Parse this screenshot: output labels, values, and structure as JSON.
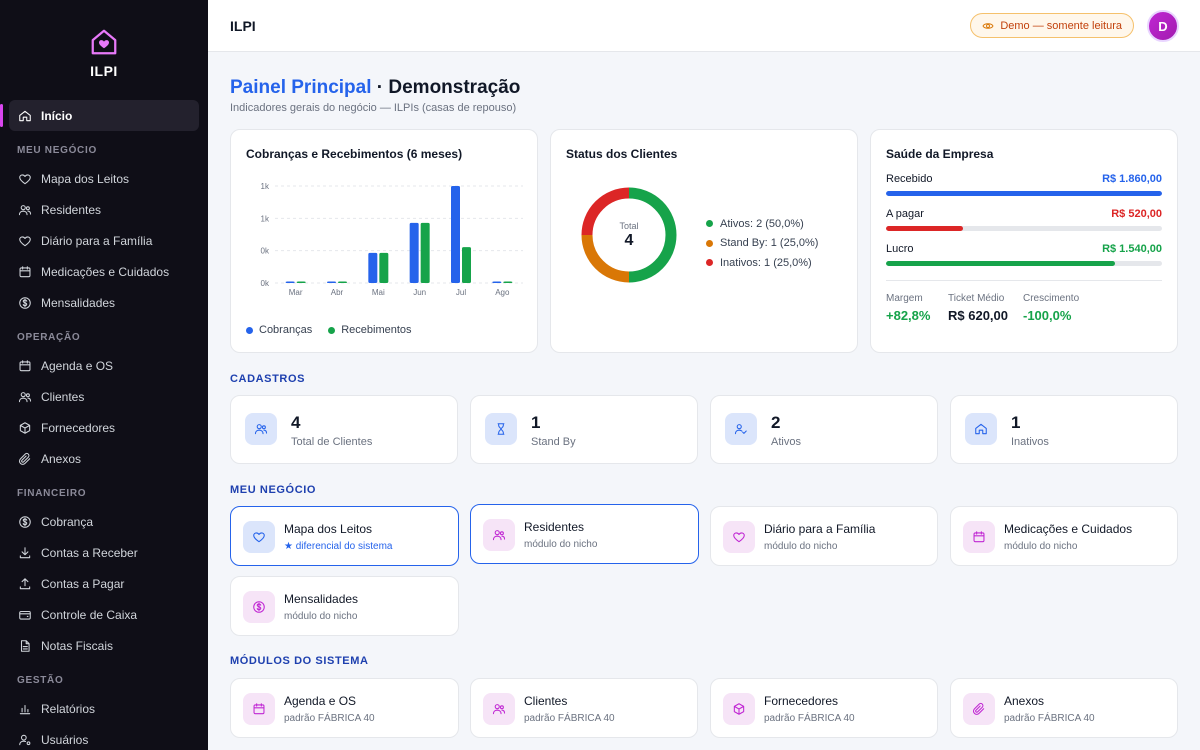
{
  "brand": {
    "name": "ILPI"
  },
  "sidebar": {
    "inicio": "Início",
    "sections": [
      {
        "title": "MEU NEGÓCIO",
        "items": [
          {
            "label": "Mapa dos Leitos",
            "icon": "heart-icon"
          },
          {
            "label": "Residentes",
            "icon": "users-icon"
          },
          {
            "label": "Diário para a Família",
            "icon": "heart-icon"
          },
          {
            "label": "Medicações e Cuidados",
            "icon": "calendar-icon"
          },
          {
            "label": "Mensalidades",
            "icon": "dollar-icon"
          }
        ]
      },
      {
        "title": "OPERAÇÃO",
        "items": [
          {
            "label": "Agenda e OS",
            "icon": "calendar-icon"
          },
          {
            "label": "Clientes",
            "icon": "users-icon"
          },
          {
            "label": "Fornecedores",
            "icon": "box-icon"
          },
          {
            "label": "Anexos",
            "icon": "paperclip-icon"
          }
        ]
      },
      {
        "title": "FINANCEIRO",
        "items": [
          {
            "label": "Cobrança",
            "icon": "dollar-icon"
          },
          {
            "label": "Contas a Receber",
            "icon": "download-icon"
          },
          {
            "label": "Contas a Pagar",
            "icon": "upload-icon"
          },
          {
            "label": "Controle de Caixa",
            "icon": "wallet-icon"
          },
          {
            "label": "Notas Fiscais",
            "icon": "file-icon"
          }
        ]
      },
      {
        "title": "GESTÃO",
        "items": [
          {
            "label": "Relatórios",
            "icon": "bar-chart-icon"
          },
          {
            "label": "Usuários",
            "icon": "user-cog-icon"
          }
        ]
      }
    ]
  },
  "topbar": {
    "title": "ILPI",
    "demo_badge": "Demo — somente leitura",
    "avatar_letter": "D"
  },
  "page": {
    "title_accent": "Painel Principal",
    "title_rest": " · Demonstração",
    "subtitle": "Indicadores gerais do negócio — ILPIs (casas de repouso)"
  },
  "chart_card": {
    "title": "Cobranças e Recebimentos (6 meses)"
  },
  "chart_data": {
    "type": "bar",
    "categories": [
      "Mar",
      "Abr",
      "Mai",
      "Jun",
      "Jul",
      "Ago"
    ],
    "series": [
      {
        "name": "Cobranças",
        "color": "#2563eb",
        "values": [
          0,
          0,
          310,
          620,
          1000,
          0
        ]
      },
      {
        "name": "Recebimentos",
        "color": "#16a34a",
        "values": [
          0,
          0,
          310,
          620,
          370,
          0
        ]
      }
    ],
    "ytick_labels": [
      "0k",
      "0k",
      "1k",
      "1k"
    ],
    "ylim": [
      0,
      1000
    ],
    "grid": true,
    "legend": "bottom-left"
  },
  "status_card": {
    "title": "Status dos Clientes",
    "total_label": "Total",
    "total_value": "4",
    "slices": [
      {
        "label": "Ativos: 2 (50,0%)",
        "value": 2,
        "color": "#16a34a"
      },
      {
        "label": "Stand By: 1 (25,0%)",
        "value": 1,
        "color": "#d97706"
      },
      {
        "label": "Inativos: 1 (25,0%)",
        "value": 1,
        "color": "#dc2626"
      }
    ]
  },
  "health_card": {
    "title": "Saúde da Empresa",
    "rows": [
      {
        "label": "Recebido",
        "value": "R$ 1.860,00",
        "color": "#2563eb",
        "fraction": 1.0
      },
      {
        "label": "A pagar",
        "value": "R$ 520,00",
        "color": "#dc2626",
        "fraction": 0.28
      },
      {
        "label": "Lucro",
        "value": "R$ 1.540,00",
        "color": "#16a34a",
        "fraction": 0.83
      }
    ],
    "metrics": [
      {
        "label": "Margem",
        "value": "+82,8%",
        "color": "#16a34a"
      },
      {
        "label": "Ticket Médio",
        "value": "R$ 620,00",
        "color": "#111827"
      },
      {
        "label": "Crescimento",
        "value": "-100,0%",
        "color": "#16a34a"
      }
    ]
  },
  "cadastros": {
    "title": "CADASTROS",
    "stats": [
      {
        "value": "4",
        "label": "Total de Clientes",
        "icon": "users-icon"
      },
      {
        "value": "1",
        "label": "Stand By",
        "icon": "hourglass-icon"
      },
      {
        "value": "2",
        "label": "Ativos",
        "icon": "user-check-icon"
      },
      {
        "value": "1",
        "label": "Inativos",
        "icon": "home-icon"
      }
    ]
  },
  "meu_negocio": {
    "title": "MEU NEGÓCIO",
    "modules": [
      {
        "title": "Mapa dos Leitos",
        "sub": "★ diferencial do sistema",
        "icon": "heart-icon"
      },
      {
        "title": "Residentes",
        "sub": "módulo do nicho",
        "icon": "users-icon"
      },
      {
        "title": "Diário para a Família",
        "sub": "módulo do nicho",
        "icon": "heart-icon"
      },
      {
        "title": "Medicações e Cuidados",
        "sub": "módulo do nicho",
        "icon": "calendar-icon"
      },
      {
        "title": "Mensalidades",
        "sub": "módulo do nicho",
        "icon": "dollar-icon"
      }
    ]
  },
  "modulos": {
    "title": "MÓDULOS DO SISTEMA",
    "modules": [
      {
        "title": "Agenda e OS",
        "sub": "padrão FÁBRICA 40",
        "icon": "calendar-icon"
      },
      {
        "title": "Clientes",
        "sub": "padrão FÁBRICA 40",
        "icon": "users-icon"
      },
      {
        "title": "Fornecedores",
        "sub": "padrão FÁBRICA 40",
        "icon": "box-icon"
      },
      {
        "title": "Anexos",
        "sub": "padrão FÁBRICA 40",
        "icon": "paperclip-icon"
      }
    ]
  }
}
